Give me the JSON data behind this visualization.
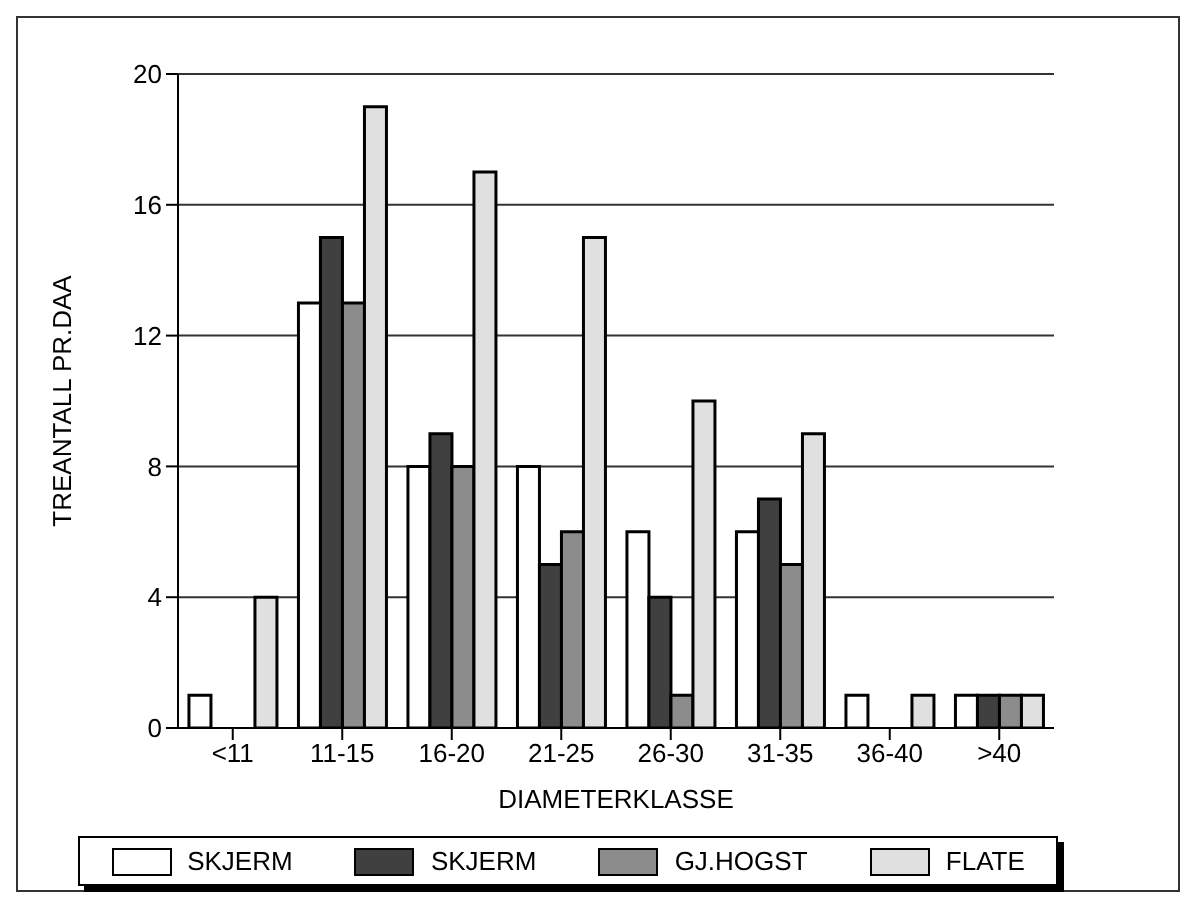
{
  "chart_data": {
    "type": "bar",
    "xlabel": "DIAMETERKLASSE",
    "ylabel": "TREANTALL PR.DAA",
    "categories": [
      "<11",
      "11-15",
      "16-20",
      "21-25",
      "26-30",
      "31-35",
      "36-40",
      ">40"
    ],
    "series": [
      {
        "name": "SKJERM",
        "color": "#ffffff",
        "values": [
          1,
          13,
          8,
          8,
          6,
          6,
          1,
          1
        ]
      },
      {
        "name": "SKJERM",
        "color": "#404040",
        "values": [
          0,
          15,
          9,
          5,
          4,
          7,
          0,
          1
        ]
      },
      {
        "name": "GJ.HOGST",
        "color": "#8c8c8c",
        "values": [
          0,
          13,
          8,
          6,
          1,
          5,
          0,
          1
        ]
      },
      {
        "name": "FLATE",
        "color": "#e0e0e0",
        "values": [
          4,
          19,
          17,
          15,
          10,
          9,
          1,
          1
        ]
      }
    ],
    "ylim": [
      0,
      20
    ],
    "yticks": [
      0,
      4,
      8,
      12,
      16,
      20
    ],
    "grid": "y",
    "legend": "bottom"
  }
}
